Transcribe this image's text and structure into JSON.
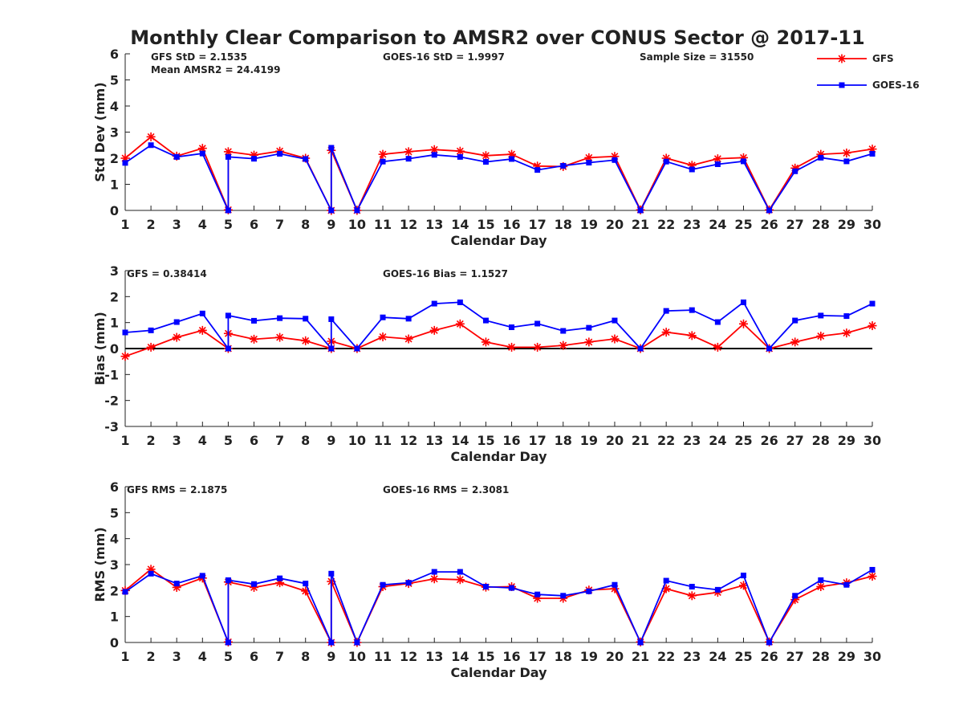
{
  "title": "Monthly Clear Comparison to AMSR2 over CONUS Sector @ 2017-11",
  "legend": {
    "placement": "top-right",
    "entries": [
      {
        "name": "GFS",
        "color": "#ff0000",
        "marker": "asterisk"
      },
      {
        "name": "GOES-16",
        "color": "#0000ff",
        "marker": "square"
      }
    ]
  },
  "chart_data": [
    {
      "type": "line",
      "xlabel": "Calendar Day",
      "ylabel": "Std Dev (mm)",
      "xlim": [
        1,
        30
      ],
      "ylim": [
        0,
        6
      ],
      "yticks": [
        0,
        1,
        2,
        3,
        4,
        5,
        6
      ],
      "x": [
        1,
        2,
        3,
        4,
        5,
        5,
        6,
        7,
        8,
        9,
        9,
        10,
        11,
        12,
        13,
        14,
        15,
        16,
        17,
        18,
        19,
        20,
        21,
        22,
        23,
        24,
        25,
        26,
        27,
        28,
        29,
        30
      ],
      "annotations": [
        "GFS StD = 2.1535",
        "Mean AMSR2 = 24.4199",
        "GOES-16 StD = 1.9997",
        "Sample Size = 31550"
      ],
      "series": [
        {
          "name": "GFS",
          "values": [
            2.0,
            2.82,
            2.08,
            2.38,
            0.02,
            2.25,
            2.12,
            2.27,
            2.0,
            0.0,
            2.3,
            0.0,
            2.15,
            2.25,
            2.33,
            2.27,
            2.1,
            2.15,
            1.7,
            1.68,
            2.02,
            2.07,
            0.02,
            2.0,
            1.73,
            1.98,
            2.02,
            0.02,
            1.62,
            2.15,
            2.2,
            2.35
          ]
        },
        {
          "name": "GOES-16",
          "values": [
            1.82,
            2.5,
            2.05,
            2.18,
            0.0,
            2.05,
            1.98,
            2.17,
            1.97,
            0.0,
            2.4,
            0.0,
            1.87,
            1.98,
            2.13,
            2.05,
            1.86,
            1.97,
            1.55,
            1.71,
            1.83,
            1.93,
            0.0,
            1.87,
            1.57,
            1.77,
            1.88,
            0.0,
            1.5,
            2.02,
            1.88,
            2.17
          ]
        }
      ]
    },
    {
      "type": "line",
      "xlabel": "Calendar Day",
      "ylabel": "Bias (mm)",
      "xlim": [
        1,
        30
      ],
      "ylim": [
        -3,
        3
      ],
      "yticks": [
        -3,
        -2,
        -1,
        0,
        1,
        2,
        3
      ],
      "zero_line": true,
      "x": [
        1,
        2,
        3,
        4,
        5,
        5,
        6,
        7,
        8,
        9,
        9,
        10,
        11,
        12,
        13,
        14,
        15,
        16,
        17,
        18,
        19,
        20,
        21,
        22,
        23,
        24,
        25,
        26,
        27,
        28,
        29,
        30
      ],
      "annotations": [
        "GFS = 0.38414",
        "GOES-16 Bias = 1.1527"
      ],
      "series": [
        {
          "name": "GFS",
          "values": [
            -0.3,
            0.05,
            0.43,
            0.7,
            0.0,
            0.58,
            0.36,
            0.43,
            0.3,
            0.0,
            0.28,
            0.0,
            0.45,
            0.37,
            0.7,
            0.95,
            0.25,
            0.05,
            0.05,
            0.12,
            0.25,
            0.37,
            0.0,
            0.63,
            0.5,
            0.05,
            0.95,
            0.0,
            0.25,
            0.48,
            0.6,
            0.88
          ]
        },
        {
          "name": "GOES-16",
          "values": [
            0.62,
            0.7,
            1.02,
            1.35,
            0.0,
            1.27,
            1.07,
            1.17,
            1.15,
            0.0,
            1.13,
            0.0,
            1.2,
            1.15,
            1.73,
            1.78,
            1.08,
            0.82,
            0.96,
            0.68,
            0.8,
            1.08,
            0.0,
            1.45,
            1.48,
            1.02,
            1.78,
            0.0,
            1.08,
            1.27,
            1.25,
            1.73
          ]
        }
      ]
    },
    {
      "type": "line",
      "xlabel": "Calendar Day",
      "ylabel": "RMS (mm)",
      "xlim": [
        1,
        30
      ],
      "ylim": [
        0,
        6
      ],
      "yticks": [
        0,
        1,
        2,
        3,
        4,
        5,
        6
      ],
      "x": [
        1,
        2,
        3,
        4,
        5,
        5,
        6,
        7,
        8,
        9,
        9,
        10,
        11,
        12,
        13,
        14,
        15,
        16,
        17,
        18,
        19,
        20,
        21,
        22,
        23,
        24,
        25,
        26,
        27,
        28,
        29,
        30
      ],
      "annotations": [
        "GFS RMS = 2.1875",
        "GOES-16 RMS = 2.3081"
      ],
      "series": [
        {
          "name": "GFS",
          "values": [
            2.0,
            2.82,
            2.12,
            2.48,
            0.02,
            2.33,
            2.12,
            2.3,
            1.98,
            0.0,
            2.35,
            0.0,
            2.15,
            2.27,
            2.45,
            2.42,
            2.13,
            2.15,
            1.7,
            1.7,
            2.02,
            2.07,
            0.02,
            2.07,
            1.8,
            1.93,
            2.2,
            0.02,
            1.65,
            2.15,
            2.3,
            2.55
          ]
        },
        {
          "name": "GOES-16",
          "values": [
            1.95,
            2.65,
            2.27,
            2.57,
            0.0,
            2.4,
            2.25,
            2.47,
            2.27,
            0.0,
            2.65,
            0.0,
            2.22,
            2.3,
            2.72,
            2.72,
            2.15,
            2.1,
            1.85,
            1.8,
            1.97,
            2.22,
            0.0,
            2.38,
            2.15,
            2.03,
            2.58,
            0.0,
            1.8,
            2.4,
            2.22,
            2.8
          ]
        }
      ]
    }
  ]
}
